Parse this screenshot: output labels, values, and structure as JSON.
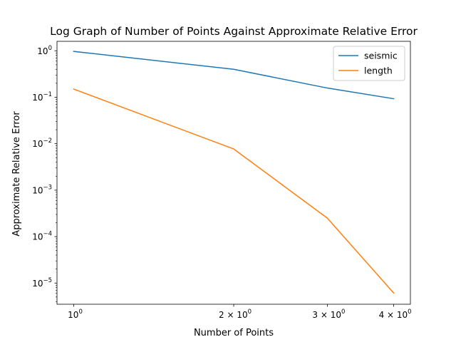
{
  "chart_data": {
    "type": "line",
    "title": "Log Graph of Number of Points Against Approximate Relative Error",
    "xlabel": "Number of Points",
    "ylabel": "Approximate Relative Error",
    "xscale": "log",
    "yscale": "log",
    "x": [
      1,
      2,
      3,
      4
    ],
    "xlim": [
      0.93,
      4.3
    ],
    "ylim": [
      3.5e-06,
      1.6
    ],
    "x_ticks": [
      {
        "value": 1,
        "base": "10",
        "exp": "0"
      },
      {
        "value": 2,
        "base": "2 × 10",
        "exp": "0"
      },
      {
        "value": 3,
        "base": "3 × 10",
        "exp": "0"
      },
      {
        "value": 4,
        "base": "4 × 10",
        "exp": "0"
      }
    ],
    "y_ticks": [
      {
        "value": 1,
        "base": "10",
        "exp": "0"
      },
      {
        "value": 0.1,
        "base": "10",
        "exp": "−1"
      },
      {
        "value": 0.01,
        "base": "10",
        "exp": "−2"
      },
      {
        "value": 0.001,
        "base": "10",
        "exp": "−3"
      },
      {
        "value": 0.0001,
        "base": "10",
        "exp": "−4"
      },
      {
        "value": 1e-05,
        "base": "10",
        "exp": "−5"
      }
    ],
    "series": [
      {
        "name": "seismic",
        "color": "#1f77b4",
        "values": [
          0.97,
          0.4,
          0.158,
          0.093
        ]
      },
      {
        "name": "length",
        "color": "#ff7f0e",
        "values": [
          0.15,
          0.0077,
          0.00025,
          6.1e-06
        ]
      }
    ],
    "legend_position": "top-right",
    "grid": false
  }
}
